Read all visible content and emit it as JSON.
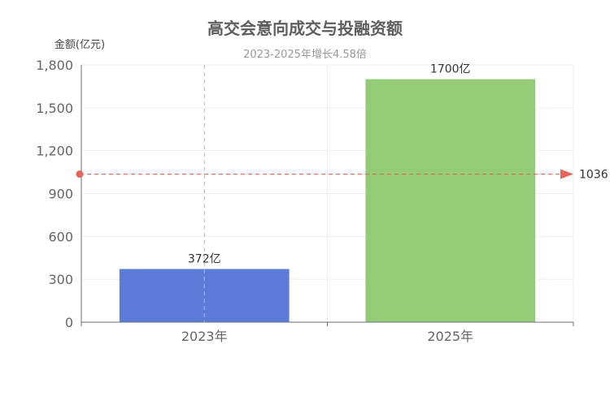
{
  "chart_data": {
    "type": "bar",
    "title": "高交会意向成交与投融资额",
    "subtitle": "2023-2025年增长4.58倍",
    "ylabel": "金额(亿元)",
    "xlabel": "",
    "categories": [
      "2023年",
      "2025年"
    ],
    "values": [
      372,
      1700
    ],
    "value_labels": [
      "372亿",
      "1700亿"
    ],
    "bar_colors": [
      "#5b7bd8",
      "#93cb77"
    ],
    "ylim": [
      0,
      1800
    ],
    "yticks": [
      0,
      300,
      600,
      900,
      1200,
      1500,
      1800
    ],
    "ytick_labels": [
      "0",
      "300",
      "600",
      "900",
      "1,200",
      "1,500",
      "1,800"
    ],
    "grid": true,
    "mark_line": {
      "value": 1036,
      "label": "1036",
      "color": "#e8645a"
    }
  }
}
